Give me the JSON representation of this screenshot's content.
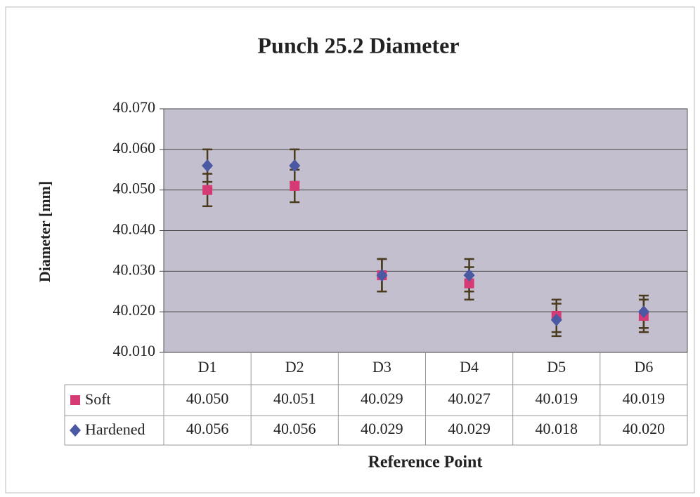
{
  "chart_data": {
    "type": "errorbar_scatter",
    "title": "Punch 25.2 Diameter",
    "ylabel": "Diameter [mm]",
    "xlabel": "Reference Point",
    "categories": [
      "D1",
      "D2",
      "D3",
      "D4",
      "D5",
      "D6"
    ],
    "series": [
      {
        "name": "Soft",
        "color": "#d63a74",
        "marker": "square",
        "values": [
          40.05,
          40.051,
          40.029,
          40.027,
          40.019,
          40.019
        ],
        "value_labels": [
          "40.050",
          "40.051",
          "40.029",
          "40.027",
          "40.019",
          "40.019"
        ],
        "errors": [
          0.004,
          0.004,
          0.004,
          0.004,
          0.004,
          0.004
        ]
      },
      {
        "name": "Hardened",
        "color": "#4b58a2",
        "marker": "diamond",
        "values": [
          40.056,
          40.056,
          40.029,
          40.029,
          40.018,
          40.02
        ],
        "value_labels": [
          "40.056",
          "40.056",
          "40.029",
          "40.029",
          "40.018",
          "40.020"
        ],
        "errors": [
          0.004,
          0.004,
          0.004,
          0.004,
          0.004,
          0.004
        ]
      }
    ],
    "ylim": [
      40.01,
      40.07
    ],
    "yticks": [
      {
        "value": 40.01,
        "label": "40.010"
      },
      {
        "value": 40.02,
        "label": "40.020"
      },
      {
        "value": 40.03,
        "label": "40.030"
      },
      {
        "value": 40.04,
        "label": "40.040"
      },
      {
        "value": 40.05,
        "label": "40.050"
      },
      {
        "value": 40.06,
        "label": "40.060"
      },
      {
        "value": 40.07,
        "label": "40.070"
      }
    ],
    "grid": true,
    "plot_background": "#c3bfcf",
    "errorbar_color": "#4a3a1e"
  }
}
